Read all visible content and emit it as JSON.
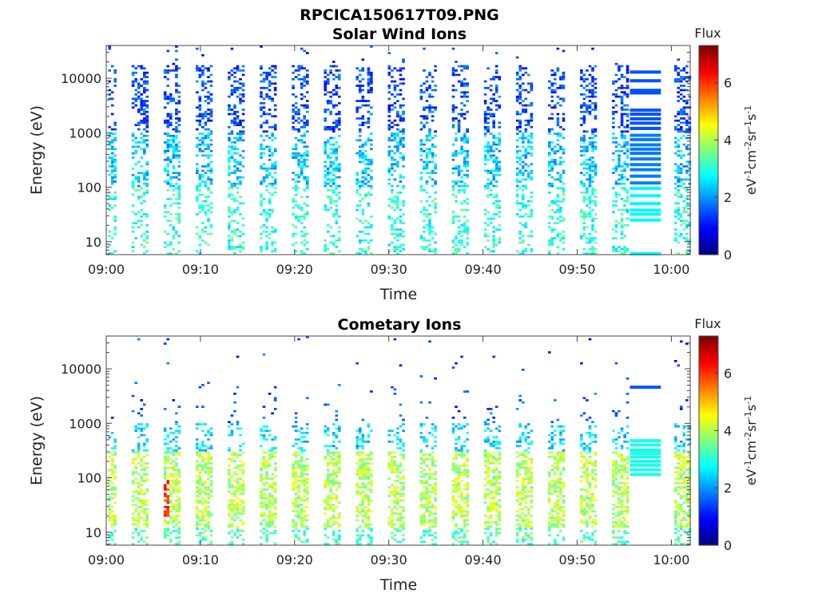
{
  "figure": {
    "title": "RPCICA150617T09.PNG"
  },
  "chart_data": [
    {
      "type": "heatmap",
      "title": "Solar Wind Ions",
      "xlabel": "Time",
      "ylabel": "Energy (eV)",
      "x_ticks": [
        "09:00",
        "09:10",
        "09:20",
        "09:30",
        "09:40",
        "09:50",
        "10:00"
      ],
      "xlim_minutes": [
        0,
        62
      ],
      "y_ticks": [
        10,
        100,
        1000,
        10000
      ],
      "y_scale": "log",
      "ylim": [
        5.8,
        40000
      ],
      "colorbar": {
        "label": "Flux",
        "unit": "eV-1cm-2sr-1s-1",
        "ticks": [
          0,
          2,
          4,
          6
        ],
        "range": [
          0,
          7.3
        ],
        "colormap": "jet"
      },
      "scan_times_min": [
        0,
        3.4,
        6.8,
        10.2,
        13.6,
        17,
        20.4,
        23.8,
        27.2,
        30.6,
        34,
        37.4,
        40.8,
        44.2,
        47.6,
        51,
        54.4,
        61
      ],
      "typical_flux": {
        "below_100eV": 3.0,
        "100_to_1000eV": 2.3,
        "above_1000eV": 1.4
      },
      "calibration_window_min": [
        55.6,
        58.9
      ],
      "calibration_energies": [
        13000,
        9000,
        6000,
        5400,
        2600,
        2200,
        1800,
        1500,
        1200,
        900,
        750,
        600,
        500,
        420,
        330,
        260,
        210,
        160,
        120,
        95,
        70,
        50,
        38,
        32,
        25,
        6
      ]
    },
    {
      "type": "heatmap",
      "title": "Cometary Ions",
      "xlabel": "Time",
      "ylabel": "Energy (eV)",
      "x_ticks": [
        "09:00",
        "09:10",
        "09:20",
        "09:30",
        "09:40",
        "09:50",
        "10:00"
      ],
      "xlim_minutes": [
        0,
        62
      ],
      "y_ticks": [
        10,
        100,
        1000,
        10000
      ],
      "y_scale": "log",
      "ylim": [
        5.8,
        40000
      ],
      "colorbar": {
        "label": "Flux",
        "unit": "eV-1cm-2sr-1s-1",
        "ticks": [
          0,
          2,
          4,
          6
        ],
        "range": [
          0,
          7.3
        ],
        "colormap": "jet"
      },
      "scan_times_min": [
        0,
        3.4,
        6.8,
        10.2,
        13.6,
        17,
        20.4,
        23.8,
        27.2,
        30.6,
        34,
        37.4,
        40.8,
        44.2,
        47.6,
        51,
        54.4,
        61
      ],
      "typical_flux": {
        "10_to_300eV": 4.0,
        "300_to_1000eV": 2.5,
        "above_1000eV": 1.5
      },
      "peak_flux_near": {
        "time_min": 5.5,
        "energy_eV": 40,
        "flux": 6.5
      },
      "calibration_window_min": [
        55.6,
        58.9
      ],
      "calibration_energies": [
        4600,
        480,
        400,
        320,
        280,
        240,
        200,
        170,
        140,
        115
      ]
    }
  ]
}
